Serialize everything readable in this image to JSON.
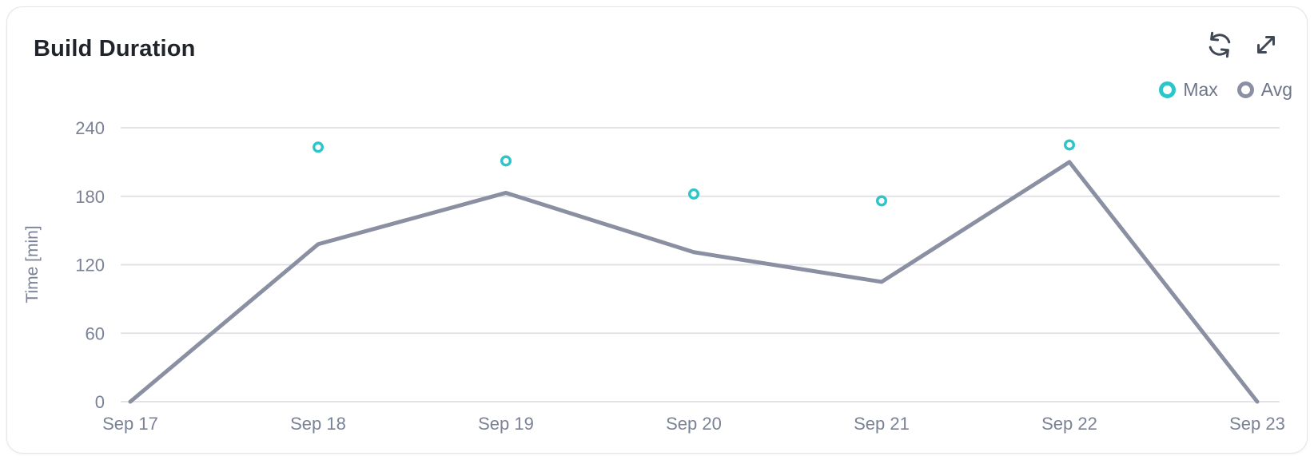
{
  "header": {
    "title": "Build Duration",
    "icons": [
      "refresh-icon",
      "expand-icon"
    ]
  },
  "legend": {
    "items": [
      {
        "label": "Max",
        "color": "#2EC5C9"
      },
      {
        "label": "Avg",
        "color": "#8A90A2"
      }
    ]
  },
  "chart_data": {
    "type": "line",
    "title": "Build Duration",
    "categories": [
      "Sep 17",
      "Sep 18",
      "Sep 19",
      "Sep 20",
      "Sep 21",
      "Sep 22",
      "Sep 23"
    ],
    "series": [
      {
        "name": "Max",
        "type": "scatter",
        "marker": "open-circle",
        "color": "#2EC5C9",
        "values": [
          null,
          223,
          211,
          182,
          176,
          225,
          null
        ]
      },
      {
        "name": "Avg",
        "type": "line",
        "color": "#8A90A2",
        "values": [
          0,
          138,
          183,
          131,
          105,
          210,
          0
        ]
      }
    ],
    "xlabel": "",
    "ylabel": "Time [min]",
    "yticks": [
      0,
      60,
      120,
      180,
      240
    ],
    "ylim": [
      0,
      255
    ],
    "grid": "horizontal",
    "legend_position": "top-right"
  },
  "colors": {
    "grid": "#DFDFE5",
    "tick_text": "#7A8296",
    "axis_title_text": "#7A8296",
    "legend_text": "#6E7689",
    "title_text": "#21252B",
    "icon": "#414855",
    "card_border": "#E4E4E9",
    "card_bg": "#FFFFFF"
  }
}
